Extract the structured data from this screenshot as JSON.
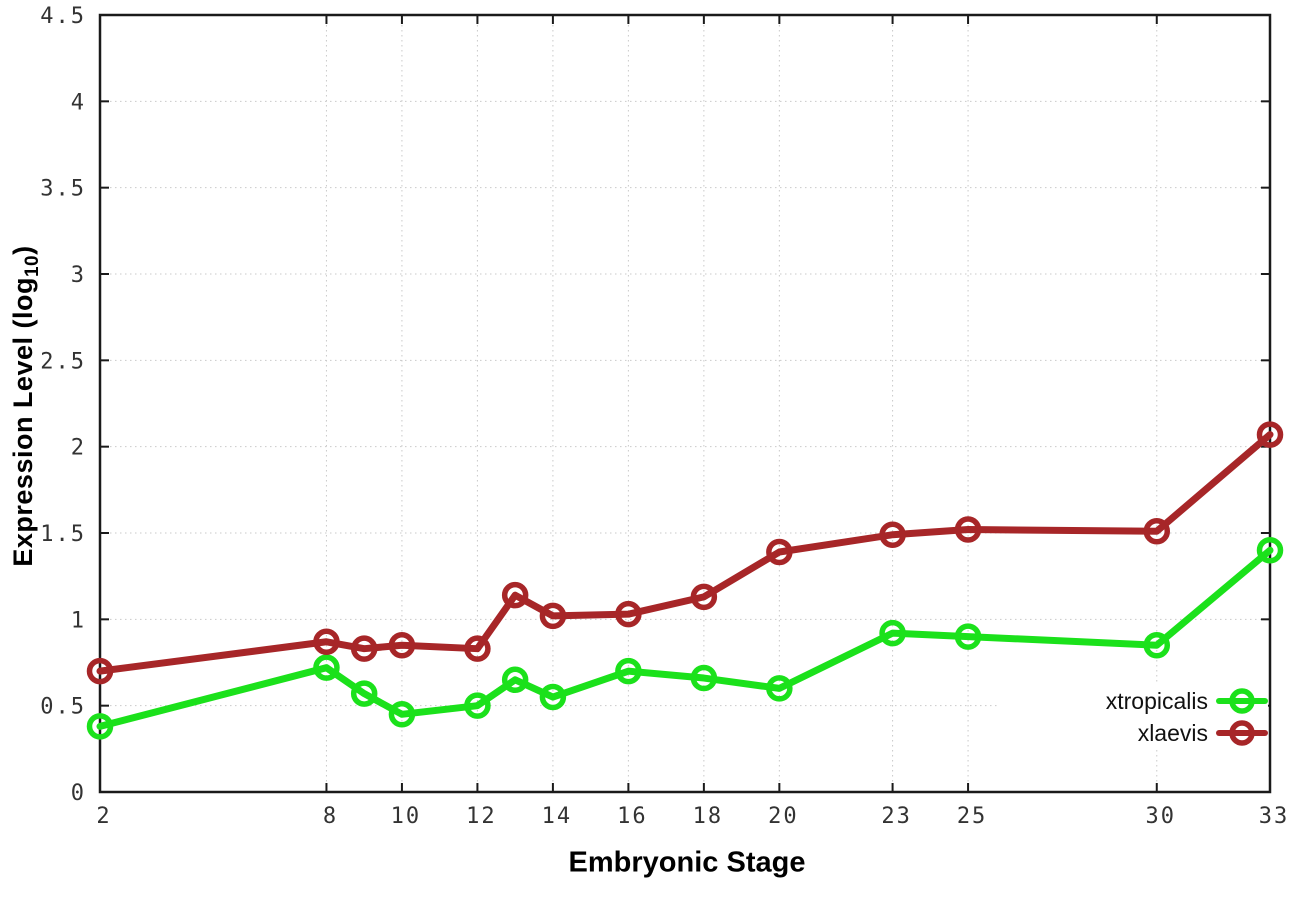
{
  "chart_data": {
    "type": "line",
    "title": "",
    "xlabel": "Embryonic Stage",
    "ylabel": "Expression Level (log10)",
    "ylabel_prefix": "Expression Level (log",
    "ylabel_sub": "10",
    "ylabel_suffix": ")",
    "x": [
      2,
      8,
      9,
      10,
      12,
      13,
      14,
      16,
      18,
      20,
      23,
      25,
      30,
      33
    ],
    "xticks": [
      2,
      8,
      10,
      12,
      14,
      16,
      18,
      20,
      23,
      25,
      30,
      33
    ],
    "yticks": [
      0,
      0.5,
      1,
      1.5,
      2,
      2.5,
      3,
      3.5,
      4,
      4.5
    ],
    "xlim": [
      2,
      33
    ],
    "ylim": [
      0,
      4.5
    ],
    "grid": true,
    "legend_position": "inside-bottom-right",
    "series": [
      {
        "name": "xtropicalis",
        "color": "#1be11b",
        "values": [
          0.38,
          0.72,
          0.57,
          0.45,
          0.5,
          0.65,
          0.55,
          0.7,
          0.66,
          0.6,
          0.92,
          0.9,
          0.85,
          1.4
        ]
      },
      {
        "name": "xlaevis",
        "color": "#a72628",
        "values": [
          0.7,
          0.87,
          0.83,
          0.85,
          0.83,
          1.14,
          1.02,
          1.03,
          1.13,
          1.39,
          1.49,
          1.52,
          1.51,
          2.07
        ]
      }
    ]
  },
  "style_colors": {
    "axis": "#1a1a1a",
    "grid": "#c9c9c9",
    "tick_text": "#333333"
  }
}
